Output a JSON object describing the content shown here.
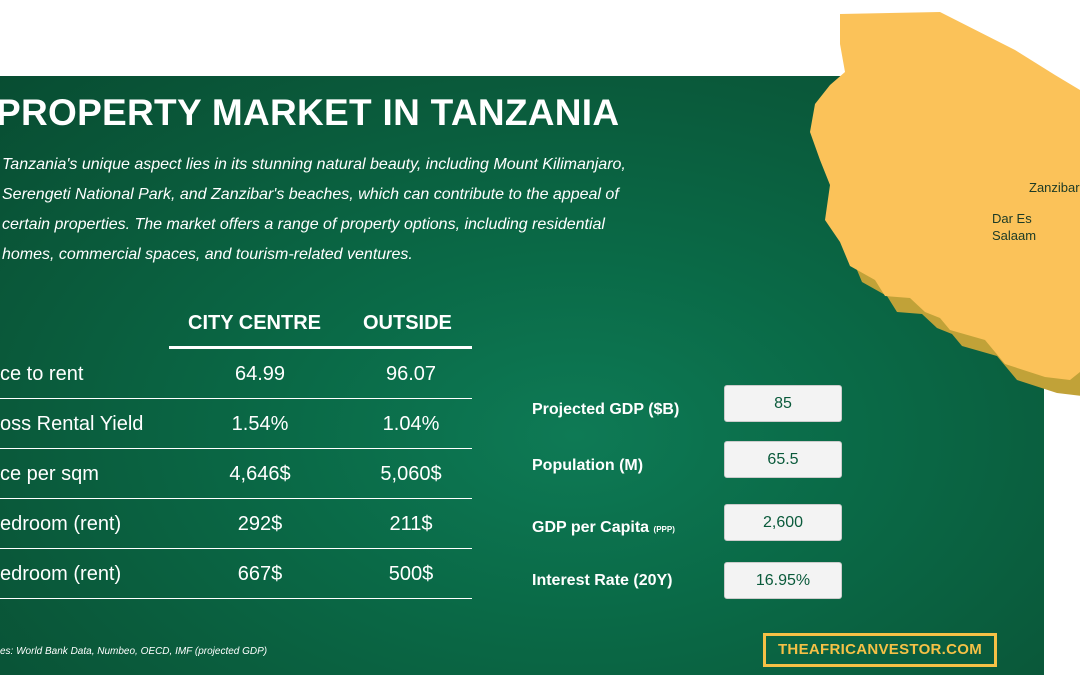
{
  "title": "PROPERTY MARKET IN TANZANIA",
  "description_lines": [
    "Tanzania's unique aspect lies in its stunning natural beauty, including Mount Kilimanjaro,",
    "Serengeti National Park, and Zanzibar's beaches, which can contribute to the appeal of",
    "certain properties. The market offers a range of property options, including residential",
    "homes, commercial spaces, and tourism-related ventures."
  ],
  "table": {
    "headers": [
      "CITY CENTRE",
      "OUTSIDE"
    ],
    "rows": [
      {
        "label": "ce to rent",
        "city": "64.99",
        "outside": "96.07"
      },
      {
        "label": "oss Rental Yield",
        "city": "1.54%",
        "outside": "1.04%"
      },
      {
        "label": "ce per sqm",
        "city": "4,646$",
        "outside": "5,060$"
      },
      {
        "label": "edroom (rent)",
        "city": "292$",
        "outside": "211$"
      },
      {
        "label": "edroom (rent)",
        "city": "667$",
        "outside": "500$"
      }
    ]
  },
  "stats": [
    {
      "label": "Projected GDP ($B)",
      "suffix": "",
      "value": "85"
    },
    {
      "label": "Population (M)",
      "suffix": "",
      "value": "65.5"
    },
    {
      "label": "GDP per Capita",
      "suffix": "(PPP)",
      "value": "2,600"
    },
    {
      "label": "Interest Rate (20Y)",
      "suffix": "",
      "value": "16.95%"
    }
  ],
  "sources": "es:  World Bank Data, Numbeo, OECD, IMF (projected GDP)",
  "brand": "THEAFRICANVESTOR.COM",
  "map": {
    "labels": {
      "zanzibar": "Zanzibar",
      "dar_line1": "Dar Es",
      "dar_line2": "Salaam"
    },
    "fill_color": "#fbc259",
    "shadow_color": "#c1a238"
  },
  "colors": {
    "panel": "#0a6a47",
    "accent": "#f5c146"
  }
}
